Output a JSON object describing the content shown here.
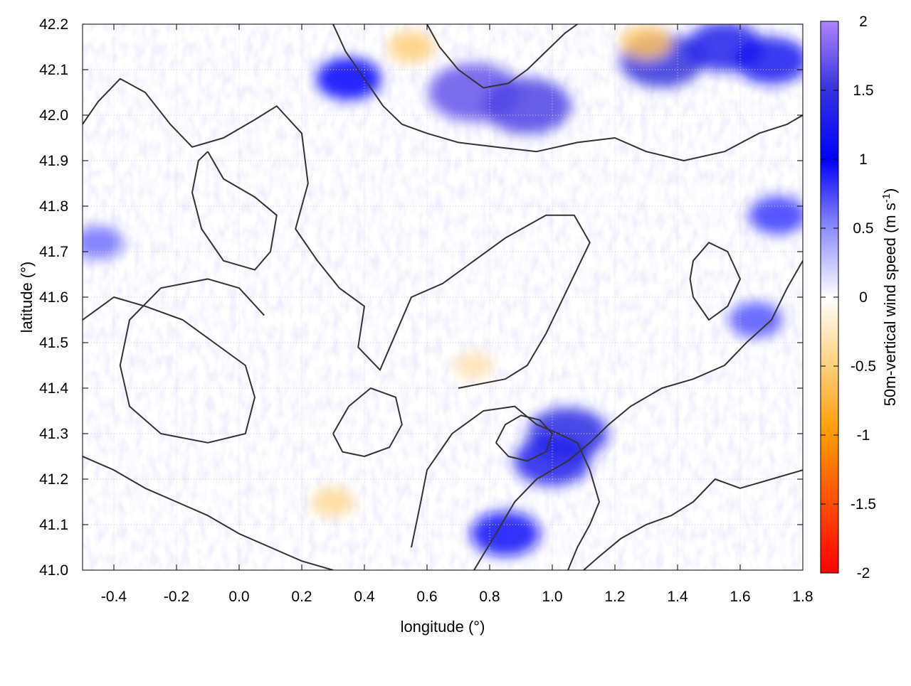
{
  "chart_data": {
    "type": "heatmap",
    "title": "",
    "xlabel": "longitude (°)",
    "ylabel": "latitude (°)",
    "xlim": [
      -0.5,
      1.8
    ],
    "ylim": [
      41.0,
      42.2
    ],
    "x_ticks": [
      -0.4,
      -0.2,
      0.0,
      0.2,
      0.4,
      0.6,
      0.8,
      1.0,
      1.2,
      1.4,
      1.6,
      1.8
    ],
    "x_tick_labels": [
      "-0.4",
      "-0.2",
      "0.0",
      "0.2",
      "0.4",
      "0.6",
      "0.8",
      "1.0",
      "1.2",
      "1.4",
      "1.6",
      "1.8"
    ],
    "y_ticks": [
      41.0,
      41.1,
      41.2,
      41.3,
      41.4,
      41.5,
      41.6,
      41.7,
      41.8,
      41.9,
      42.0,
      42.1,
      42.2
    ],
    "y_tick_labels": [
      "41.0",
      "41.1",
      "41.2",
      "41.3",
      "41.4",
      "41.5",
      "41.6",
      "41.7",
      "41.8",
      "41.9",
      "42.0",
      "42.1",
      "42.2"
    ],
    "grid": true,
    "colorbar": {
      "label_main": "50m-vertical wind speed (m s",
      "label_sup": "-1",
      "label_end": ")",
      "range": [
        -2,
        2
      ],
      "ticks": [
        2,
        1.5,
        1,
        0.5,
        0,
        -0.5,
        -1,
        -1.5,
        -2
      ],
      "tick_labels": [
        "2",
        "1.5",
        "1",
        "0.5",
        "0",
        "-0.5",
        "-1",
        "-1.5",
        "-2"
      ],
      "stops": [
        {
          "v": -2.0,
          "color": "#ff0000"
        },
        {
          "v": -1.0,
          "color": "#ff9900"
        },
        {
          "v": -0.5,
          "color": "#ffcf7a"
        },
        {
          "v": 0.0,
          "color": "#ffffff"
        },
        {
          "v": 0.5,
          "color": "#8c8cff"
        },
        {
          "v": 1.0,
          "color": "#0000ff"
        },
        {
          "v": 1.5,
          "color": "#3333dd"
        },
        {
          "v": 2.0,
          "color": "#b082ff"
        }
      ]
    },
    "hotspots": [
      {
        "lon": 0.75,
        "lat": 42.05,
        "value": 1.7
      },
      {
        "lon": 0.92,
        "lat": 42.02,
        "value": 1.6
      },
      {
        "lon": 1.35,
        "lat": 42.12,
        "value": 1.5
      },
      {
        "lon": 1.55,
        "lat": 42.15,
        "value": 1.3
      },
      {
        "lon": 1.7,
        "lat": 42.12,
        "value": 1.2
      },
      {
        "lon": 0.35,
        "lat": 42.08,
        "value": 1.0
      },
      {
        "lon": 1.05,
        "lat": 41.3,
        "value": 1.4
      },
      {
        "lon": 1.0,
        "lat": 41.24,
        "value": 1.3
      },
      {
        "lon": 0.85,
        "lat": 41.08,
        "value": 1.1
      },
      {
        "lon": 1.72,
        "lat": 41.78,
        "value": 0.8
      },
      {
        "lon": 1.65,
        "lat": 41.55,
        "value": 0.7
      },
      {
        "lon": -0.45,
        "lat": 41.72,
        "value": 0.6
      },
      {
        "lon": 0.3,
        "lat": 41.15,
        "value": -0.4
      },
      {
        "lon": 0.55,
        "lat": 42.15,
        "value": -0.5
      },
      {
        "lon": 1.3,
        "lat": 42.16,
        "value": -0.6
      },
      {
        "lon": 0.75,
        "lat": 41.45,
        "value": -0.3
      }
    ],
    "contours": [
      [
        [
          -0.5,
          41.98
        ],
        [
          -0.45,
          42.03
        ],
        [
          -0.38,
          42.08
        ],
        [
          -0.3,
          42.05
        ],
        [
          -0.22,
          41.98
        ],
        [
          -0.15,
          41.93
        ],
        [
          -0.05,
          41.95
        ],
        [
          0.05,
          41.99
        ],
        [
          0.12,
          42.02
        ],
        [
          0.2,
          41.96
        ],
        [
          0.22,
          41.85
        ],
        [
          0.18,
          41.75
        ],
        [
          0.25,
          41.68
        ],
        [
          0.32,
          41.62
        ],
        [
          0.4,
          41.58
        ],
        [
          0.38,
          41.49
        ],
        [
          0.45,
          41.44
        ],
        [
          0.5,
          41.52
        ],
        [
          0.55,
          41.6
        ],
        [
          0.65,
          41.63
        ],
        [
          0.75,
          41.68
        ],
        [
          0.85,
          41.73
        ],
        [
          0.98,
          41.78
        ],
        [
          1.07,
          41.78
        ],
        [
          1.12,
          41.72
        ],
        [
          1.05,
          41.62
        ],
        [
          0.98,
          41.52
        ],
        [
          0.92,
          41.45
        ],
        [
          0.85,
          41.42
        ],
        [
          0.7,
          41.4
        ]
      ],
      [
        [
          -0.5,
          41.55
        ],
        [
          -0.4,
          41.6
        ],
        [
          -0.3,
          41.58
        ],
        [
          -0.18,
          41.55
        ],
        [
          -0.08,
          41.5
        ],
        [
          0.02,
          41.45
        ],
        [
          0.05,
          41.38
        ],
        [
          0.02,
          41.3
        ],
        [
          -0.1,
          41.28
        ],
        [
          -0.25,
          41.3
        ],
        [
          -0.35,
          41.36
        ],
        [
          -0.38,
          41.45
        ],
        [
          -0.35,
          41.55
        ],
        [
          -0.25,
          41.62
        ],
        [
          -0.1,
          41.64
        ],
        [
          0.0,
          41.62
        ],
        [
          0.08,
          41.56
        ]
      ],
      [
        [
          0.55,
          41.05
        ],
        [
          0.58,
          41.15
        ],
        [
          0.6,
          41.22
        ],
        [
          0.68,
          41.3
        ],
        [
          0.78,
          41.35
        ],
        [
          0.88,
          41.36
        ],
        [
          0.95,
          41.32
        ],
        [
          1.02,
          41.3
        ],
        [
          1.08,
          41.28
        ],
        [
          1.12,
          41.22
        ],
        [
          1.15,
          41.15
        ],
        [
          1.12,
          41.1
        ],
        [
          1.08,
          41.05
        ],
        [
          1.05,
          41.0
        ]
      ],
      [
        [
          0.75,
          41.0
        ],
        [
          0.82,
          41.08
        ],
        [
          0.88,
          41.15
        ],
        [
          0.95,
          41.2
        ],
        [
          1.05,
          41.24
        ],
        [
          1.12,
          41.28
        ],
        [
          1.18,
          41.32
        ],
        [
          1.25,
          41.36
        ],
        [
          1.35,
          41.4
        ],
        [
          1.45,
          41.42
        ],
        [
          1.55,
          41.45
        ],
        [
          1.62,
          41.5
        ],
        [
          1.7,
          41.55
        ],
        [
          1.75,
          41.62
        ],
        [
          1.8,
          41.68
        ]
      ],
      [
        [
          1.8,
          41.22
        ],
        [
          1.7,
          41.2
        ],
        [
          1.6,
          41.18
        ],
        [
          1.52,
          41.2
        ],
        [
          1.45,
          41.15
        ],
        [
          1.38,
          41.12
        ],
        [
          1.3,
          41.1
        ],
        [
          1.22,
          41.07
        ],
        [
          1.15,
          41.03
        ],
        [
          1.1,
          41.0
        ]
      ],
      [
        [
          -0.5,
          41.25
        ],
        [
          -0.4,
          41.22
        ],
        [
          -0.3,
          41.18
        ],
        [
          -0.2,
          41.15
        ],
        [
          -0.1,
          41.12
        ],
        [
          0.0,
          41.08
        ],
        [
          0.1,
          41.05
        ],
        [
          0.2,
          41.02
        ],
        [
          0.3,
          41.0
        ]
      ],
      [
        [
          0.3,
          42.2
        ],
        [
          0.34,
          42.14
        ],
        [
          0.4,
          42.08
        ],
        [
          0.46,
          42.02
        ],
        [
          0.52,
          41.98
        ],
        [
          0.6,
          41.96
        ],
        [
          0.7,
          41.94
        ],
        [
          0.82,
          41.93
        ],
        [
          0.95,
          41.92
        ],
        [
          1.08,
          41.94
        ],
        [
          1.2,
          41.95
        ],
        [
          1.3,
          41.92
        ],
        [
          1.42,
          41.9
        ],
        [
          1.55,
          41.92
        ],
        [
          1.66,
          41.96
        ],
        [
          1.75,
          41.98
        ],
        [
          1.8,
          42.0
        ]
      ],
      [
        [
          0.6,
          42.2
        ],
        [
          0.64,
          42.15
        ],
        [
          0.7,
          42.1
        ],
        [
          0.78,
          42.06
        ],
        [
          0.86,
          42.07
        ],
        [
          0.92,
          42.1
        ],
        [
          0.98,
          42.14
        ],
        [
          1.04,
          42.18
        ],
        [
          1.08,
          42.2
        ]
      ],
      [
        [
          -0.1,
          41.92
        ],
        [
          -0.05,
          41.86
        ],
        [
          0.05,
          41.82
        ],
        [
          0.12,
          41.78
        ],
        [
          0.1,
          41.7
        ],
        [
          0.05,
          41.66
        ],
        [
          -0.05,
          41.68
        ],
        [
          -0.12,
          41.75
        ],
        [
          -0.15,
          41.83
        ],
        [
          -0.13,
          41.9
        ],
        [
          -0.1,
          41.92
        ]
      ],
      [
        [
          1.45,
          41.6
        ],
        [
          1.5,
          41.55
        ],
        [
          1.56,
          41.58
        ],
        [
          1.6,
          41.64
        ],
        [
          1.56,
          41.7
        ],
        [
          1.5,
          41.72
        ],
        [
          1.45,
          41.68
        ],
        [
          1.44,
          41.64
        ],
        [
          1.45,
          41.6
        ]
      ],
      [
        [
          0.3,
          41.3
        ],
        [
          0.35,
          41.36
        ],
        [
          0.42,
          41.4
        ],
        [
          0.5,
          41.38
        ],
        [
          0.52,
          41.32
        ],
        [
          0.48,
          41.27
        ],
        [
          0.4,
          41.25
        ],
        [
          0.33,
          41.26
        ],
        [
          0.3,
          41.3
        ]
      ],
      [
        [
          0.82,
          41.28
        ],
        [
          0.86,
          41.25
        ],
        [
          0.92,
          41.24
        ],
        [
          0.98,
          41.26
        ],
        [
          1.0,
          41.3
        ],
        [
          0.96,
          41.33
        ],
        [
          0.9,
          41.34
        ],
        [
          0.85,
          41.32
        ],
        [
          0.82,
          41.28
        ]
      ]
    ]
  }
}
